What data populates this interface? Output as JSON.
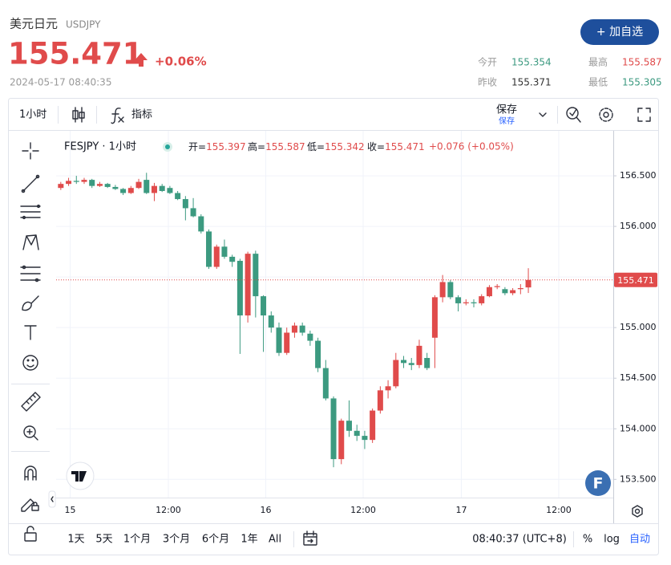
{
  "header": {
    "name": "美元日元",
    "symbol": "USDJPY",
    "price": "155.471",
    "change": "+0.06%",
    "datetime": "2024-05-17 08:40:35",
    "button": "+ 加自选",
    "stats": [
      {
        "label": "今开",
        "value": "155.354"
      },
      {
        "label": "最高",
        "value": "155.587"
      },
      {
        "label": "昨收",
        "value": "155.371"
      },
      {
        "label": "最低",
        "value": "155.305"
      }
    ]
  },
  "toolbar": {
    "interval": "1小时",
    "indicators": "指标",
    "save": "保存",
    "save_sub": "保存"
  },
  "legend": {
    "title": "FESJPY · 1小时",
    "items": [
      {
        "label": "开=",
        "value": "155.397"
      },
      {
        "label": "高=",
        "value": "155.587"
      },
      {
        "label": "低=",
        "value": "155.342"
      },
      {
        "label": "收=",
        "value": "155.471"
      }
    ],
    "change": "+0.076 (+0.05%)"
  },
  "badge": "F",
  "range_buttons": [
    "1天",
    "5天",
    "1个月",
    "3个月",
    "6个月",
    "1年",
    "All"
  ],
  "status": {
    "time": "08:40:37 (UTC+8)",
    "percent": "%",
    "log": "log",
    "auto": "自动"
  },
  "chart_data": {
    "type": "candlestick",
    "up_color": "#e04b4b",
    "down_color": "#3c9a80",
    "open": [
      156.38,
      156.42,
      156.45,
      156.44,
      156.46,
      156.4,
      156.42,
      156.39,
      156.37,
      156.33,
      156.38,
      156.46,
      156.33,
      156.4,
      156.38,
      156.33,
      156.27,
      156.18,
      156.1,
      155.95,
      155.6,
      155.8,
      155.7,
      155.66,
      155.12,
      155.73,
      155.31,
      155.12,
      155.0,
      154.75,
      154.95,
      155.02,
      154.94,
      154.87,
      154.6,
      154.3,
      153.7,
      154.08,
      153.98,
      153.93,
      153.89,
      154.18,
      154.38,
      154.42,
      154.68,
      154.65,
      154.63,
      154.7,
      154.9,
      155.3,
      155.45,
      155.3,
      155.24,
      155.25,
      155.24,
      155.31,
      155.4,
      155.38,
      155.34,
      155.38,
      155.397
    ],
    "high": [
      156.44,
      156.48,
      156.5,
      156.48,
      156.47,
      156.44,
      156.43,
      156.41,
      156.38,
      156.4,
      156.47,
      156.53,
      156.43,
      156.42,
      156.4,
      156.35,
      156.3,
      156.28,
      156.12,
      155.97,
      155.82,
      155.87,
      155.72,
      155.68,
      155.75,
      155.76,
      155.32,
      155.16,
      155.05,
      155.0,
      155.05,
      155.05,
      154.97,
      154.9,
      154.68,
      154.32,
      154.1,
      154.28,
      154.04,
      153.98,
      154.2,
      154.42,
      154.48,
      154.75,
      154.72,
      154.7,
      154.88,
      154.75,
      155.32,
      155.52,
      155.47,
      155.32,
      155.28,
      155.28,
      155.33,
      155.42,
      155.43,
      155.4,
      155.39,
      155.43,
      155.587
    ],
    "low": [
      156.36,
      156.4,
      156.42,
      156.42,
      156.38,
      156.39,
      156.38,
      156.36,
      156.31,
      156.32,
      156.37,
      156.32,
      156.25,
      156.34,
      156.32,
      156.26,
      156.06,
      156.09,
      155.93,
      155.58,
      155.58,
      155.68,
      155.6,
      154.74,
      155.05,
      155.1,
      154.76,
      154.95,
      154.72,
      154.73,
      154.9,
      154.92,
      154.82,
      154.56,
      154.28,
      153.62,
      153.65,
      153.92,
      153.88,
      153.8,
      153.86,
      154.15,
      154.3,
      154.4,
      154.6,
      154.58,
      154.6,
      154.58,
      154.6,
      155.25,
      155.28,
      155.16,
      155.22,
      155.2,
      155.22,
      155.3,
      155.38,
      155.32,
      155.32,
      155.33,
      155.342
    ],
    "close": [
      156.42,
      156.45,
      156.44,
      156.46,
      156.4,
      156.42,
      156.39,
      156.37,
      156.33,
      156.38,
      156.44,
      156.33,
      156.4,
      156.35,
      156.33,
      156.27,
      156.18,
      156.1,
      155.95,
      155.6,
      155.8,
      155.7,
      155.65,
      155.12,
      155.73,
      155.31,
      155.12,
      155.0,
      154.75,
      154.95,
      155.02,
      154.95,
      154.87,
      154.6,
      154.3,
      153.7,
      154.08,
      153.98,
      153.93,
      153.89,
      154.18,
      154.38,
      154.42,
      154.68,
      154.65,
      154.63,
      154.82,
      154.6,
      155.3,
      155.45,
      155.3,
      155.24,
      155.25,
      155.24,
      155.31,
      155.4,
      155.41,
      155.34,
      155.37,
      155.39,
      155.471
    ],
    "xlim": [
      -0.6,
      70.9
    ],
    "xticks": [
      {
        "value": 1.2,
        "label": "15"
      },
      {
        "value": 13.8,
        "label": "12:00"
      },
      {
        "value": 26.3,
        "label": "16"
      },
      {
        "value": 38.8,
        "label": "12:00"
      },
      {
        "value": 51.4,
        "label": "17"
      },
      {
        "value": 63.9,
        "label": "12:00"
      }
    ],
    "ylim": [
      153.32,
      156.905
    ],
    "yticks": [
      {
        "value": 153.5,
        "label": "153.500"
      },
      {
        "value": 154.0,
        "label": "154.000"
      },
      {
        "value": 154.5,
        "label": "154.500"
      },
      {
        "value": 155.0,
        "label": "155.000"
      },
      {
        "value": 155.5,
        "label": "155.500"
      },
      {
        "value": 156.0,
        "label": "156.000"
      },
      {
        "value": 156.5,
        "label": "156.500"
      }
    ],
    "grid": true,
    "current_price": {
      "value": 155.471,
      "label": "155.471"
    }
  }
}
